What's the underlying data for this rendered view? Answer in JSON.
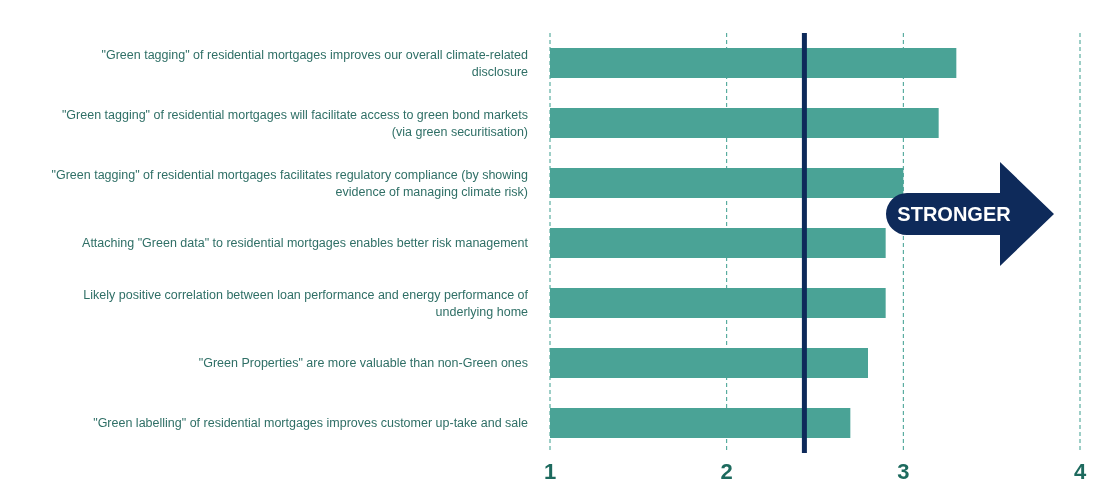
{
  "chart_data": {
    "type": "bar",
    "orientation": "horizontal",
    "categories": [
      "\"Green tagging\" of residential mortgages improves our overall climate-related disclosure",
      "\"Green tagging\" of residential mortgages will facilitate access to green bond markets (via green securitisation)",
      "\"Green tagging\" of residential mortgages facilitates regulatory compliance (by showing evidence of managing climate risk)",
      "Attaching \"Green data\" to residential mortgages enables better risk management",
      "Likely positive correlation between loan performance and energy performance of underlying home",
      "\"Green Properties\" are more valuable than non-Green ones",
      "\"Green labelling\" of residential mortgages improves customer up-take and sale"
    ],
    "values": [
      3.3,
      3.2,
      3.0,
      2.9,
      2.9,
      2.8,
      2.7
    ],
    "color": "#4aa396",
    "xlim": [
      1,
      4
    ],
    "xticks": [
      1,
      2,
      3,
      4
    ],
    "grid": "x",
    "ref_lines": [
      {
        "axis": "x",
        "value": 2.44,
        "color": "#0e2a5a"
      }
    ],
    "annotations": [
      "STRONGER"
    ]
  }
}
